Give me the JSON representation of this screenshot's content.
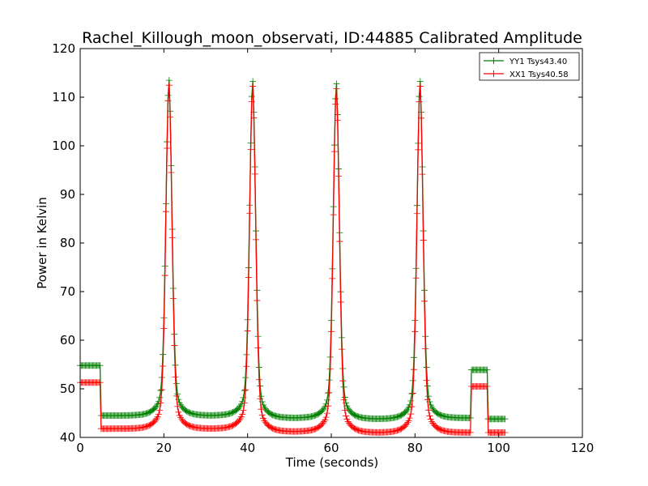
{
  "chart_data": {
    "type": "line",
    "title": "Rachel_Killough_moon_observati, ID:44885 Calibrated Amplitude",
    "xlabel": "Time (seconds)",
    "ylabel": "Power in Kelvin",
    "xlim": [
      0,
      120
    ],
    "ylim": [
      40,
      120
    ],
    "xticks": [
      "0",
      "20",
      "40",
      "60",
      "80",
      "100",
      "120"
    ],
    "yticks": [
      "40",
      "50",
      "60",
      "70",
      "80",
      "90",
      "100",
      "110",
      "120"
    ],
    "grid": false,
    "legend_position": "top-right",
    "marker": "plus",
    "series": [
      {
        "name": "YY1 Tsys43.40",
        "color": "#008000",
        "baseline_segments": [
          {
            "x_start": 0,
            "x_end": 5,
            "y": 54.8
          },
          {
            "x_start": 5,
            "x_end": 40,
            "y": 44.5
          },
          {
            "x_start": 40,
            "x_end": 61,
            "y": 44.0
          },
          {
            "x_start": 61,
            "x_end": 81,
            "y": 43.8
          },
          {
            "x_start": 81,
            "x_end": 93.5,
            "y": 44.0
          },
          {
            "x_start": 93.5,
            "x_end": 97.5,
            "y": 53.9
          },
          {
            "x_start": 97.5,
            "x_end": 101.5,
            "y": 43.8
          }
        ],
        "peaks": [
          {
            "x": 21.2,
            "y": 114.0
          },
          {
            "x": 41.2,
            "y": 113.8
          },
          {
            "x": 61.2,
            "y": 113.3
          },
          {
            "x": 81.2,
            "y": 113.8
          }
        ]
      },
      {
        "name": "XX1 Tsys40.58",
        "color": "#ff0000",
        "baseline_segments": [
          {
            "x_start": 0,
            "x_end": 5,
            "y": 51.3
          },
          {
            "x_start": 5,
            "x_end": 40,
            "y": 41.8
          },
          {
            "x_start": 40,
            "x_end": 61,
            "y": 41.2
          },
          {
            "x_start": 61,
            "x_end": 81,
            "y": 41.0
          },
          {
            "x_start": 81,
            "x_end": 93.5,
            "y": 41.0
          },
          {
            "x_start": 93.5,
            "x_end": 97.5,
            "y": 50.5
          },
          {
            "x_start": 97.5,
            "x_end": 101.5,
            "y": 41.0
          }
        ],
        "peaks": [
          {
            "x": 21.2,
            "y": 113.0
          },
          {
            "x": 41.2,
            "y": 112.8
          },
          {
            "x": 61.2,
            "y": 112.3
          },
          {
            "x": 81.2,
            "y": 112.8
          }
        ]
      }
    ]
  }
}
